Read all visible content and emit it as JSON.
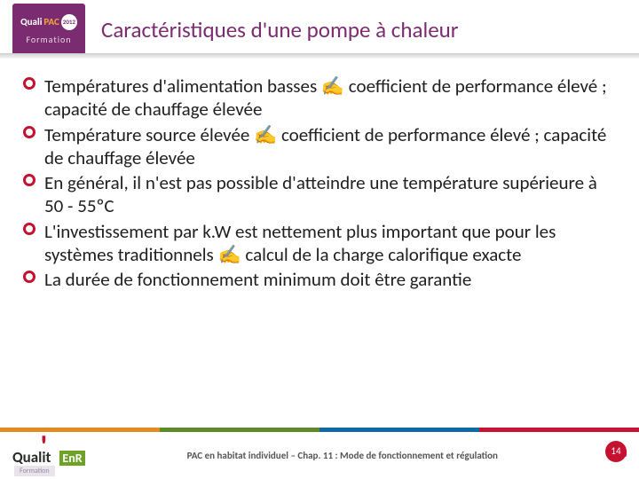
{
  "header": {
    "logo_line1": "Quali",
    "logo_pac": "PAC",
    "logo_year": "2012",
    "logo_line2": "Formation",
    "title": "Caractéristiques d'une pompe à chaleur"
  },
  "bullets": [
    "Températures d'alimentation basses ✍ coefficient de performance élevé ; capacité de chauffage élevée",
    "Température source élevée ✍ coefficient de performance élevé ; capacité de chauffage élevée",
    "En général, il n'est pas possible d'atteindre une température supérieure à 50 - 55ºC",
    "L'investissement par k.W est nettement plus important que pour les systèmes traditionnels ✍ calcul de la charge calorifique exacte",
    "La durée de fonctionnement minimum doit être garantie"
  ],
  "colors": {
    "brand_purple": "#7b2b6f",
    "brand_red": "#c41230",
    "bar": [
      "#e28b1e",
      "#5f8a2a",
      "#0f6aa6",
      "#c41230"
    ]
  },
  "footer": {
    "logo_main": "Qualit",
    "logo_enr": "EnR",
    "logo_sub": "Formation",
    "text": "PAC en habitat individuel – Chap. 11 : Mode de fonctionnement et régulation",
    "page": "14"
  }
}
